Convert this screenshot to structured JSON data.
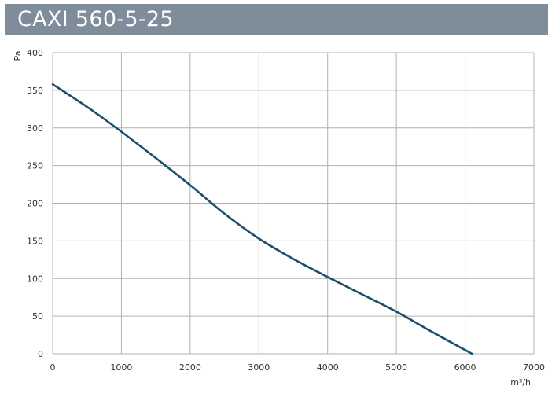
{
  "header": {
    "title": "CAXI 560-5-25",
    "bg_color": "#7f8c9a"
  },
  "chart_data": {
    "type": "line",
    "title": "CAXI 560-5-25",
    "xlabel": "m³/h",
    "ylabel": "Pa",
    "xlim": [
      0,
      7000
    ],
    "ylim": [
      0,
      400
    ],
    "xticks": [
      0,
      1000,
      2000,
      3000,
      4000,
      5000,
      6000,
      7000
    ],
    "yticks": [
      0,
      50,
      100,
      150,
      200,
      250,
      300,
      350,
      400
    ],
    "grid": true,
    "line_color": "#1b4f6a",
    "grid_color": "#b0b0b0",
    "series": [
      {
        "x": [
          0,
          500,
          1000,
          1500,
          2000,
          2500,
          3000,
          3500,
          4000,
          4500,
          5000,
          5500,
          6100
        ],
        "y": [
          358,
          328,
          295,
          260,
          224,
          186,
          153,
          126,
          102,
          79,
          56,
          30,
          0
        ]
      }
    ]
  }
}
